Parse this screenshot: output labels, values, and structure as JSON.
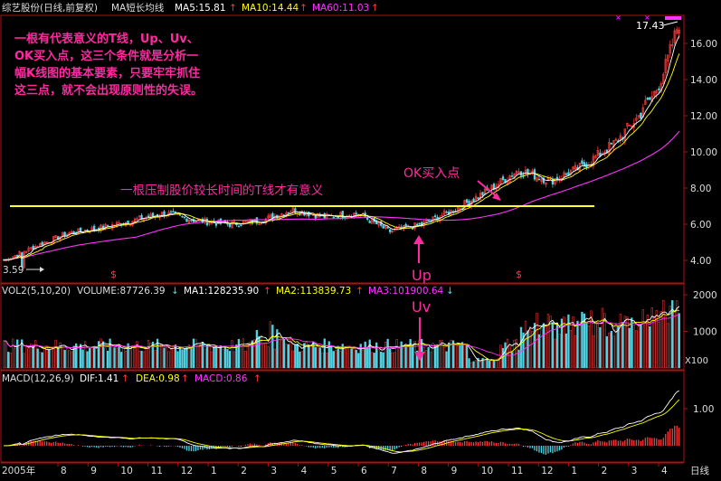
{
  "header": {
    "stock": "综艺股份(日线,前复权)",
    "ma_title": "MA短长均线",
    "ma5": "MA5:15.81",
    "ma10": "MA10:14.44",
    "ma60": "MA60:11.03"
  },
  "volume_header": {
    "title": "VOL2(5,10,20)",
    "volume": "VOLUME:87726.39",
    "ma1": "MA1:128235.90",
    "ma2": "MA2:113839.73",
    "ma3": "MA3:101900.64"
  },
  "macd_header": {
    "title": "MACD(12,26,9)",
    "dif": "DIF:1.41",
    "dea": "DEA:0.98",
    "macd": "MACD:0.86"
  },
  "annotations": {
    "main_text": [
      "一根有代表意义的T线，Up、Uv、",
      "OK买入点，这三个条件就是分析一",
      "幅K线图的基本要素，只要牢牢抓住",
      "这三点，就不会出现原则性的失误。"
    ],
    "tline_label": "一根压制股价较长时间的T线才有意义",
    "ok_label": "OK买入点",
    "up_label": "Up",
    "uv_label": "Uv",
    "low_label": "3.59",
    "high_label": "17.43"
  },
  "bottom_axis": {
    "year": "2005年",
    "period": "日线",
    "months": [
      "8",
      "9",
      "10",
      "11",
      "12",
      "1",
      "2",
      "3",
      "4",
      "5",
      "6",
      "7",
      "8",
      "9",
      "10",
      "11",
      "12",
      "1",
      "2",
      "3",
      "4"
    ]
  },
  "colors": {
    "up": "#ff3a3a",
    "down": "#4fd6e6",
    "ma5": "#ffffff",
    "ma10": "#ffff00",
    "ma60": "#ff33ff",
    "tline": "#ffff33",
    "annotation": "#ff2aa0",
    "frame": "#b01010"
  },
  "chart_data": [
    {
      "type": "candlestick",
      "title": "综艺股份(日线,前复权)",
      "y_ticks": [
        4.0,
        6.0,
        8.0,
        10.0,
        12.0,
        14.0,
        16.0
      ],
      "ylim": [
        3.0,
        17.8
      ],
      "low": 3.59,
      "high": 17.43,
      "t_line": 7.0,
      "month_closes": [
        {
          "month": "2005-08",
          "close": 4.0
        },
        {
          "month": "2005-09",
          "close": 4.8
        },
        {
          "month": "2005-10",
          "close": 5.5
        },
        {
          "month": "2005-11",
          "close": 5.8
        },
        {
          "month": "2005-12",
          "close": 6.2
        },
        {
          "month": "2006-01",
          "close": 6.6
        },
        {
          "month": "2006-02",
          "close": 6.2
        },
        {
          "month": "2006-03",
          "close": 6.0
        },
        {
          "month": "2006-04",
          "close": 6.2
        },
        {
          "month": "2006-05",
          "close": 6.8
        },
        {
          "month": "2006-06",
          "close": 6.4
        },
        {
          "month": "2006-07",
          "close": 6.6
        },
        {
          "month": "2006-08",
          "close": 5.6
        },
        {
          "month": "2006-09",
          "close": 6.0
        },
        {
          "month": "2006-10",
          "close": 6.8
        },
        {
          "month": "2006-11",
          "close": 7.8
        },
        {
          "month": "2006-12",
          "close": 9.0
        },
        {
          "month": "2007-01",
          "close": 8.4
        },
        {
          "month": "2007-02",
          "close": 9.2
        },
        {
          "month": "2007-03",
          "close": 10.5
        },
        {
          "month": "2007-04",
          "close": 12.5
        },
        {
          "month": "2007-04-end",
          "close": 17.43
        }
      ],
      "ma5": 15.81,
      "ma10": 14.44,
      "ma60": 11.03
    },
    {
      "type": "bar",
      "title": "VOL2(5,10,20)",
      "y_ticks": [
        1000,
        2000
      ],
      "ylim": [
        0,
        2200
      ],
      "unit": "X100",
      "volume": 87726.39,
      "ma1": 128235.9,
      "ma2": 113839.73,
      "ma3": 101900.64
    },
    {
      "type": "bar",
      "title": "MACD(12,26,9)",
      "y_ticks": [
        1.0
      ],
      "ylim": [
        -0.3,
        1.5
      ],
      "dif": 1.41,
      "dea": 0.98,
      "macd": 0.86
    }
  ]
}
